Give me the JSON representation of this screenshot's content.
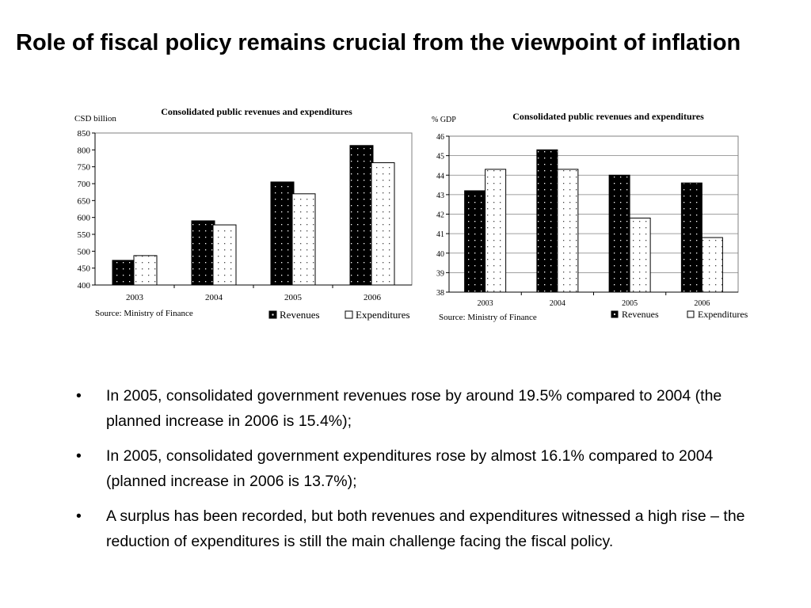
{
  "slide": {
    "title": "Role of fiscal policy remains crucial from the viewpoint of inflation",
    "bullet_symbol": "•",
    "bullets": [
      "In 2005, consolidated government revenues rose by around 19.5% compared to 2004 (the planned increase in 2006 is 15.4%);",
      "In 2005, consolidated government expenditures rose by almost 16.1% compared to 2004 (planned increase in 2006 is 13.7%);",
      "A surplus has been recorded, but both revenues and expenditures witnessed a high rise – the reduction of expenditures is still the main challenge facing the fiscal policy."
    ]
  },
  "chart_data": [
    {
      "type": "bar",
      "title": "Consolidated public revenues and expenditures",
      "ylabel": "CSD billion",
      "source": "Source: Ministry of Finance",
      "categories": [
        "2003",
        "2004",
        "2005",
        "2006"
      ],
      "ylim": [
        400,
        850
      ],
      "yticks": [
        400,
        450,
        500,
        550,
        600,
        650,
        700,
        750,
        800,
        850
      ],
      "series": [
        {
          "name": "Revenues",
          "values": [
            473,
            590,
            705,
            813
          ],
          "fill": "#000000"
        },
        {
          "name": "Expenditures",
          "values": [
            487,
            578,
            670,
            762
          ],
          "fill": "#ffffff"
        }
      ],
      "legend": "bottom-right",
      "grid": false
    },
    {
      "type": "bar",
      "title": "Consolidated public revenues and expenditures",
      "ylabel": "% GDP",
      "source": "Source: Ministry of Finance",
      "categories": [
        "2003",
        "2004",
        "2005",
        "2006"
      ],
      "ylim": [
        38,
        46
      ],
      "yticks": [
        38,
        39,
        40,
        41,
        42,
        43,
        44,
        45,
        46
      ],
      "series": [
        {
          "name": "Revenues",
          "values": [
            43.2,
            45.3,
            44.0,
            43.6
          ],
          "fill": "#000000"
        },
        {
          "name": "Expenditures",
          "values": [
            44.3,
            44.3,
            41.8,
            40.8
          ],
          "fill": "#ffffff"
        }
      ],
      "legend": "bottom-right",
      "grid": true
    }
  ]
}
